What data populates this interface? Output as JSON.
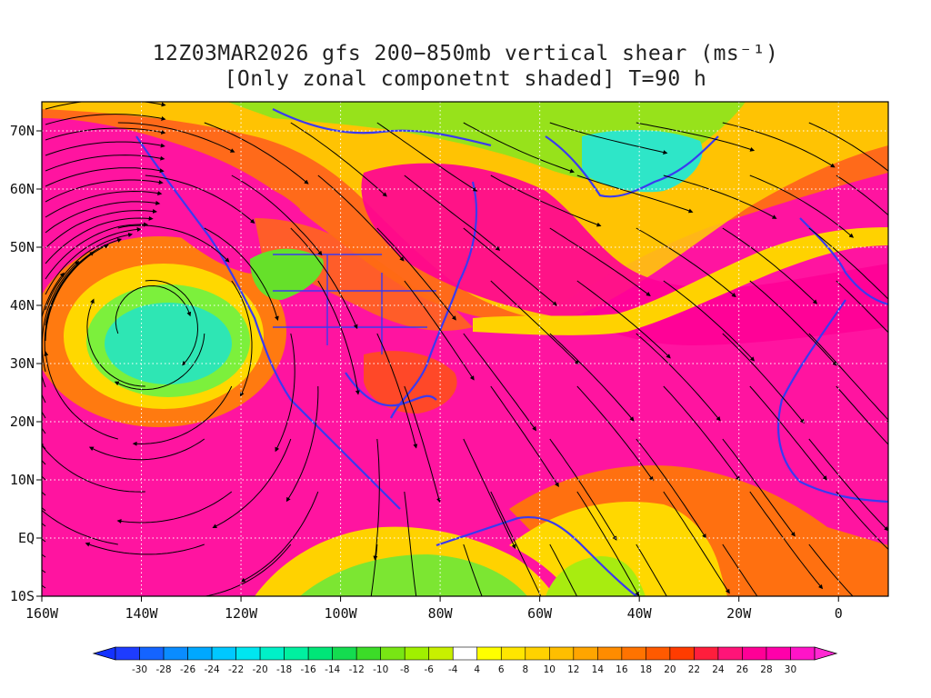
{
  "title": {
    "line1": "12Z03MAR2026 gfs 200−850mb vertical shear (ms⁻¹)",
    "line2": "[Only zonal componetnt shaded] T=90 h"
  },
  "map": {
    "lon_range": [
      -160,
      10
    ],
    "lat_range": [
      -10,
      75
    ],
    "lon_ticks": [
      {
        "lon": -160,
        "label": "160W"
      },
      {
        "lon": -140,
        "label": "140W"
      },
      {
        "lon": -120,
        "label": "120W"
      },
      {
        "lon": -100,
        "label": "100W"
      },
      {
        "lon": -80,
        "label": "80W"
      },
      {
        "lon": -60,
        "label": "60W"
      },
      {
        "lon": -40,
        "label": "40W"
      },
      {
        "lon": -20,
        "label": "20W"
      },
      {
        "lon": 0,
        "label": "0"
      }
    ],
    "lat_ticks": [
      {
        "lat": -10,
        "label": "10S"
      },
      {
        "lat": 0,
        "label": "EQ"
      },
      {
        "lat": 10,
        "label": "10N"
      },
      {
        "lat": 20,
        "label": "20N"
      },
      {
        "lat": 30,
        "label": "30N"
      },
      {
        "lat": 40,
        "label": "40N"
      },
      {
        "lat": 50,
        "label": "50N"
      },
      {
        "lat": 60,
        "label": "60N"
      },
      {
        "lat": 70,
        "label": "70N"
      }
    ]
  },
  "colorbar": {
    "labels": [
      "-30",
      "-28",
      "-26",
      "-24",
      "-22",
      "-20",
      "-18",
      "-16",
      "-14",
      "-12",
      "-10",
      "-8",
      "-6",
      "-4",
      "4",
      "6",
      "8",
      "10",
      "12",
      "14",
      "16",
      "18",
      "20",
      "22",
      "24",
      "26",
      "28",
      "30"
    ],
    "colors": [
      "#1e3cff",
      "#1464ff",
      "#0a8cff",
      "#00a8ff",
      "#00c8ff",
      "#00e6f0",
      "#00f0c8",
      "#00f0a0",
      "#00e678",
      "#14dc50",
      "#3cdc28",
      "#78e614",
      "#a0f000",
      "#c8f000",
      "#ffffff",
      "#ffff00",
      "#ffe600",
      "#ffd200",
      "#ffbe00",
      "#ffa500",
      "#ff8c00",
      "#ff7300",
      "#ff5a00",
      "#ff3c00",
      "#ff1e3c",
      "#ff1478",
      "#ff0096",
      "#ff00aa",
      "#ff14c8"
    ],
    "low_color": "#1432ff",
    "high_color": "#ff28d2"
  },
  "colors": {
    "coast": "#3a3af0",
    "streamline": "#000000",
    "grid": "#ffffff"
  }
}
